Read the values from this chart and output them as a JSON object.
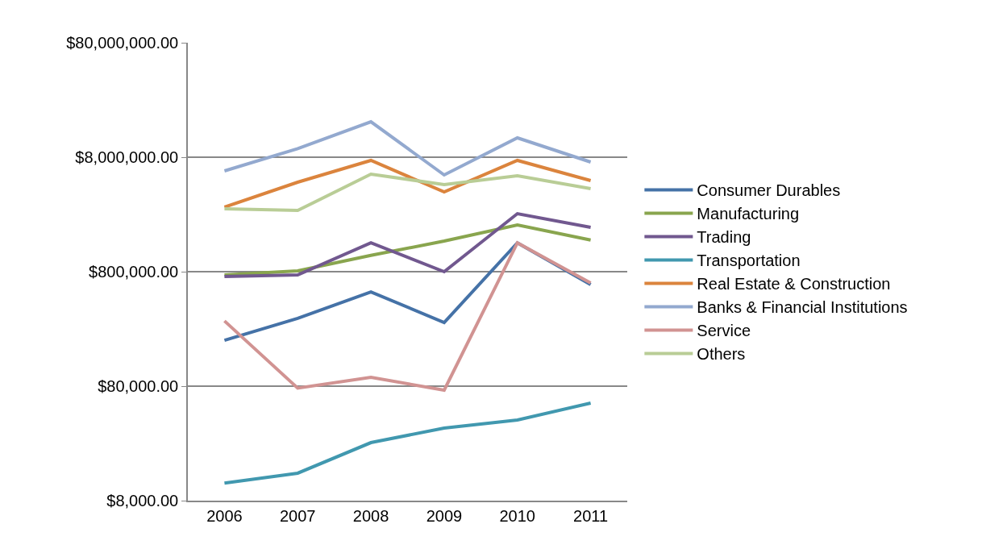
{
  "chart_data": {
    "type": "line",
    "categories": [
      "2006",
      "2007",
      "2008",
      "2009",
      "2010",
      "2011"
    ],
    "series": [
      {
        "name": "Consumer Durables",
        "color": "#4572a7",
        "values": [
          201000,
          313000,
          533000,
          288000,
          1430000,
          617000
        ]
      },
      {
        "name": "Manufacturing",
        "color": "#89a54e",
        "values": [
          750000,
          813000,
          1110000,
          1480000,
          2050000,
          1510000
        ]
      },
      {
        "name": "Trading",
        "color": "#71588f",
        "values": [
          726000,
          750000,
          1430000,
          800000,
          2570000,
          1950000
        ]
      },
      {
        "name": "Transportation",
        "color": "#4198af",
        "values": [
          11400,
          13900,
          25700,
          34400,
          40500,
          56900
        ]
      },
      {
        "name": "Real Estate & Construction",
        "color": "#db843d",
        "values": [
          2930000,
          4840000,
          7500000,
          3980000,
          7500000,
          5000000
        ]
      },
      {
        "name": "Banks & Financial Institutions",
        "color": "#93a9cf",
        "values": [
          6070000,
          9500000,
          16300000,
          5600000,
          11800000,
          7260000
        ]
      },
      {
        "name": "Service",
        "color": "#d19392",
        "values": [
          297000,
          77000,
          95600,
          73800,
          1430000,
          637000
        ]
      },
      {
        "name": "Others",
        "color": "#b9cd96",
        "values": [
          2830000,
          2740000,
          5690000,
          4610000,
          5510000,
          4250000
        ]
      }
    ],
    "log": "y",
    "ylim": [
      8000,
      80000000
    ],
    "yticks": [
      {
        "value": 8000,
        "label": "$8,000.00"
      },
      {
        "value": 80000,
        "label": "$80,000.00"
      },
      {
        "value": 800000,
        "label": "$800,000.00"
      },
      {
        "value": 8000000,
        "label": "$8,000,000.00"
      },
      {
        "value": 80000000,
        "label": "$80,000,000.00"
      }
    ],
    "grid": "y",
    "legend": "right",
    "marker": "none",
    "line_style": "solid"
  }
}
